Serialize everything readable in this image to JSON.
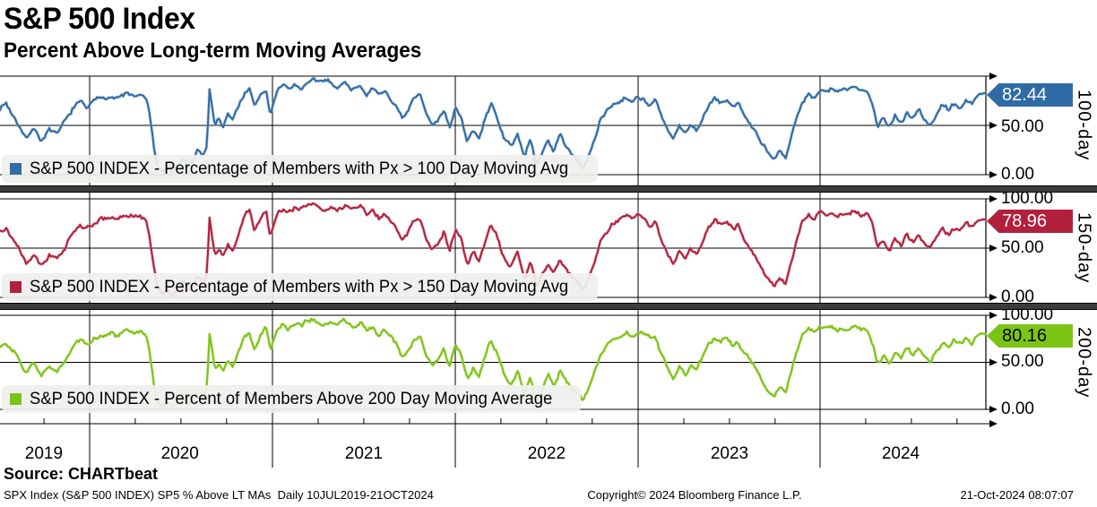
{
  "header": {
    "title": "S&P 500 Index",
    "subtitle": "Percent Above Long-term Moving Averages"
  },
  "chart_data": {
    "type": "line",
    "title": "S&P 500 Index",
    "subtitle": "Percent Above Long-term Moving Averages",
    "ylim": [
      0,
      100
    ],
    "grid": true,
    "x_range_label": "10JUL2019-21OCT2024",
    "x_ticks": [
      {
        "label": "2019",
        "f": 0.0445
      },
      {
        "label": "2020",
        "f": 0.1825
      },
      {
        "label": "2021",
        "f": 0.369
      },
      {
        "label": "2022",
        "f": 0.5545
      },
      {
        "label": "2023",
        "f": 0.74
      },
      {
        "label": "2024",
        "f": 0.9136
      }
    ],
    "year_boundaries_f": [
      0.0909,
      0.2764,
      0.4618,
      0.6473,
      0.8318
    ],
    "panels": [
      {
        "axis_label": "100-day",
        "legend_label": "S&P 500 INDEX - Percentage of Members with Px > 100 Day Moving Avg",
        "last_value": 82.44,
        "tag_label": "82.44",
        "color": "#2f6ba4",
        "color_light": "#9db9d5",
        "tag_text_color": "#ffffff",
        "y_tick_labels": [
          "",
          "50.00",
          "0.00"
        ],
        "offsets": []
      },
      {
        "axis_label": "150-day",
        "legend_label": "S&P 500 INDEX - Percentage of Members with Px > 150 Day Moving Avg",
        "last_value": 78.96,
        "tag_label": "78.96",
        "color": "#b2203c",
        "color_light": "#d99aa6",
        "tag_text_color": "#ffffff",
        "y_tick_labels": [
          "100.00",
          "50.00",
          "0.00"
        ],
        "offsets": [
          [
            0.186,
            0.255,
            -8
          ]
        ]
      },
      {
        "axis_label": "200-day",
        "legend_label": "S&P 500 INDEX - Percent of Members Above 200 Day Moving Average",
        "last_value": 80.16,
        "tag_label": "80.16",
        "color": "#7cc414",
        "color_light": "#c4e08f",
        "tag_text_color": "#000000",
        "y_tick_labels": [
          "100.00",
          "50.00",
          "0.00"
        ],
        "offsets": [
          [
            0.186,
            0.265,
            -10
          ]
        ]
      }
    ],
    "base_keypoints": [
      [
        0.0,
        68
      ],
      [
        0.006,
        73
      ],
      [
        0.012,
        62
      ],
      [
        0.018,
        55
      ],
      [
        0.027,
        38
      ],
      [
        0.034,
        50
      ],
      [
        0.042,
        36
      ],
      [
        0.05,
        47
      ],
      [
        0.058,
        40
      ],
      [
        0.066,
        52
      ],
      [
        0.074,
        66
      ],
      [
        0.082,
        73
      ],
      [
        0.088,
        68
      ],
      [
        0.095,
        74
      ],
      [
        0.103,
        79
      ],
      [
        0.112,
        81
      ],
      [
        0.12,
        78
      ],
      [
        0.128,
        82
      ],
      [
        0.136,
        80
      ],
      [
        0.143,
        81
      ],
      [
        0.148,
        76
      ],
      [
        0.152,
        60
      ],
      [
        0.156,
        28
      ],
      [
        0.16,
        8
      ],
      [
        0.165,
        3
      ],
      [
        0.17,
        9
      ],
      [
        0.174,
        2
      ],
      [
        0.18,
        6
      ],
      [
        0.186,
        16
      ],
      [
        0.191,
        7
      ],
      [
        0.196,
        14
      ],
      [
        0.201,
        25
      ],
      [
        0.206,
        18
      ],
      [
        0.21,
        30
      ],
      [
        0.2125,
        88
      ],
      [
        0.215,
        72
      ],
      [
        0.218,
        50
      ],
      [
        0.222,
        58
      ],
      [
        0.226,
        48
      ],
      [
        0.231,
        62
      ],
      [
        0.236,
        55
      ],
      [
        0.242,
        70
      ],
      [
        0.248,
        84
      ],
      [
        0.253,
        88
      ],
      [
        0.258,
        68
      ],
      [
        0.264,
        80
      ],
      [
        0.27,
        86
      ],
      [
        0.274,
        62
      ],
      [
        0.281,
        84
      ],
      [
        0.287,
        90
      ],
      [
        0.293,
        86
      ],
      [
        0.299,
        91
      ],
      [
        0.306,
        88
      ],
      [
        0.312,
        93
      ],
      [
        0.319,
        95
      ],
      [
        0.326,
        91
      ],
      [
        0.334,
        95
      ],
      [
        0.342,
        90
      ],
      [
        0.35,
        94
      ],
      [
        0.358,
        88
      ],
      [
        0.366,
        92
      ],
      [
        0.372,
        84
      ],
      [
        0.378,
        88
      ],
      [
        0.384,
        80
      ],
      [
        0.39,
        86
      ],
      [
        0.396,
        78
      ],
      [
        0.402,
        70
      ],
      [
        0.408,
        55
      ],
      [
        0.414,
        63
      ],
      [
        0.42,
        76
      ],
      [
        0.426,
        80
      ],
      [
        0.432,
        60
      ],
      [
        0.438,
        48
      ],
      [
        0.444,
        56
      ],
      [
        0.45,
        68
      ],
      [
        0.456,
        50
      ],
      [
        0.462,
        70
      ],
      [
        0.468,
        60
      ],
      [
        0.474,
        32
      ],
      [
        0.48,
        45
      ],
      [
        0.486,
        35
      ],
      [
        0.492,
        55
      ],
      [
        0.498,
        72
      ],
      [
        0.504,
        60
      ],
      [
        0.511,
        38
      ],
      [
        0.518,
        28
      ],
      [
        0.525,
        42
      ],
      [
        0.532,
        16
      ],
      [
        0.538,
        35
      ],
      [
        0.544,
        10
      ],
      [
        0.55,
        22
      ],
      [
        0.556,
        35
      ],
      [
        0.562,
        25
      ],
      [
        0.568,
        40
      ],
      [
        0.574,
        30
      ],
      [
        0.58,
        22
      ],
      [
        0.586,
        15
      ],
      [
        0.591,
        7
      ],
      [
        0.597,
        18
      ],
      [
        0.603,
        35
      ],
      [
        0.609,
        55
      ],
      [
        0.615,
        65
      ],
      [
        0.621,
        72
      ],
      [
        0.628,
        76
      ],
      [
        0.635,
        80
      ],
      [
        0.641,
        77
      ],
      [
        0.647,
        82
      ],
      [
        0.653,
        78
      ],
      [
        0.659,
        72
      ],
      [
        0.665,
        76
      ],
      [
        0.671,
        58
      ],
      [
        0.677,
        45
      ],
      [
        0.683,
        35
      ],
      [
        0.689,
        47
      ],
      [
        0.695,
        40
      ],
      [
        0.701,
        50
      ],
      [
        0.707,
        45
      ],
      [
        0.713,
        58
      ],
      [
        0.719,
        70
      ],
      [
        0.725,
        75
      ],
      [
        0.731,
        72
      ],
      [
        0.737,
        76
      ],
      [
        0.743,
        68
      ],
      [
        0.749,
        73
      ],
      [
        0.755,
        60
      ],
      [
        0.761,
        52
      ],
      [
        0.767,
        42
      ],
      [
        0.773,
        30
      ],
      [
        0.779,
        20
      ],
      [
        0.785,
        12
      ],
      [
        0.791,
        22
      ],
      [
        0.797,
        15
      ],
      [
        0.802,
        35
      ],
      [
        0.808,
        60
      ],
      [
        0.814,
        78
      ],
      [
        0.82,
        84
      ],
      [
        0.826,
        82
      ],
      [
        0.832,
        86
      ],
      [
        0.838,
        84
      ],
      [
        0.844,
        86
      ],
      [
        0.85,
        83
      ],
      [
        0.856,
        86
      ],
      [
        0.862,
        84
      ],
      [
        0.868,
        87
      ],
      [
        0.874,
        84
      ],
      [
        0.88,
        86
      ],
      [
        0.886,
        70
      ],
      [
        0.89,
        52
      ],
      [
        0.896,
        60
      ],
      [
        0.902,
        50
      ],
      [
        0.908,
        62
      ],
      [
        0.914,
        55
      ],
      [
        0.92,
        65
      ],
      [
        0.926,
        58
      ],
      [
        0.932,
        68
      ],
      [
        0.938,
        55
      ],
      [
        0.944,
        48
      ],
      [
        0.95,
        62
      ],
      [
        0.956,
        72
      ],
      [
        0.962,
        66
      ],
      [
        0.968,
        74
      ],
      [
        0.974,
        68
      ],
      [
        0.98,
        76
      ],
      [
        0.986,
        72
      ],
      [
        0.992,
        79
      ],
      [
        1.0,
        82.44
      ]
    ]
  },
  "footer": {
    "source_label": "Source: CHARTbeat",
    "ticker_info": "SPX Index (S&P 500 INDEX) SP5 % Above LT MAs  Daily 10JUL2019-21OCT2024",
    "copyright": "Copyright© 2024 Bloomberg Finance L.P.",
    "timestamp": "21-Oct-2024 08:07:07"
  }
}
